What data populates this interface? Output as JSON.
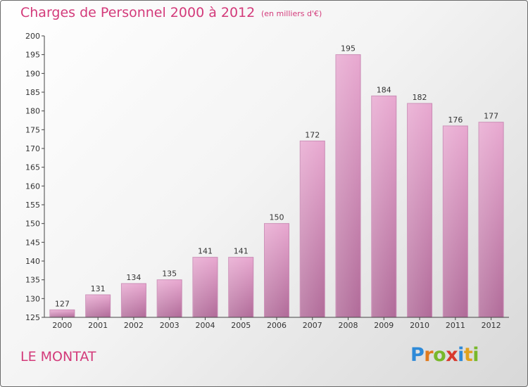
{
  "title": "Charges de Personnel 2000 à 2012",
  "subtitle": "(en milliers d'€)",
  "commune": "LE MONTAT",
  "logo": {
    "letters": [
      "P",
      "r",
      "o",
      "x",
      "i",
      "t",
      "i"
    ],
    "colors": [
      "#2e8ad8",
      "#e07a1e",
      "#78b82a",
      "#d83a2e",
      "#2e8ad8",
      "#e0a21e",
      "#78b82a"
    ]
  },
  "colors": {
    "accent": "#d33a7a",
    "bar_top": "#e8a8d0",
    "bar_bottom": "#b06a98"
  },
  "chart_data": {
    "type": "bar",
    "categories": [
      "2000",
      "2001",
      "2002",
      "2003",
      "2004",
      "2005",
      "2006",
      "2007",
      "2008",
      "2009",
      "2010",
      "2011",
      "2012"
    ],
    "values": [
      127,
      131,
      134,
      135,
      141,
      141,
      150,
      172,
      195,
      184,
      182,
      176,
      177
    ],
    "ylim": [
      125,
      200
    ],
    "yticks": [
      125,
      130,
      135,
      140,
      145,
      150,
      155,
      160,
      165,
      170,
      175,
      180,
      185,
      190,
      195,
      200
    ],
    "data_labels": true,
    "grid": false
  }
}
